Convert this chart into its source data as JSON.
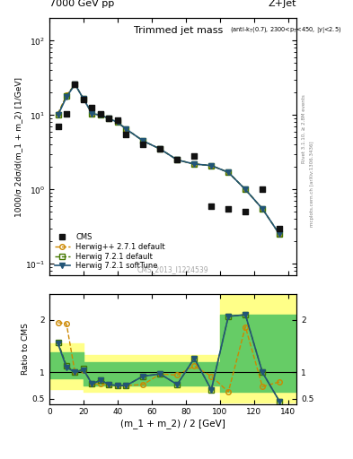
{
  "title_top": "7000 GeV pp",
  "title_right": "Z+Jet",
  "subplot_title": "Trimmed jet mass",
  "subplot_subtitle_small": "(anti-k_{T}(0.7), 2300<p_{T}<450, |y|<2.5)",
  "ylabel_main": "1000/σ 2dσ/d(m_1 + m_2) [1/GeV]",
  "ylabel_ratio": "Ratio to CMS",
  "xlabel": "(m_1 + m_2) / 2 [GeV]",
  "watermark": "CMS_2013_I1224539",
  "rivet_label": "Rivet 3.1.10, ≥ 2.8M events",
  "mcplots_label": "mcplots.cern.ch [arXiv:1306.3436]",
  "cms_x": [
    5,
    10,
    15,
    20,
    25,
    30,
    35,
    40,
    45,
    55,
    65,
    75,
    85,
    95,
    105,
    115,
    125,
    135
  ],
  "cms_y": [
    7.0,
    10.5,
    26.0,
    16.0,
    12.5,
    10.5,
    9.0,
    8.5,
    5.5,
    4.0,
    3.5,
    2.5,
    2.8,
    0.6,
    0.55,
    0.5,
    1.0,
    0.3
  ],
  "hpp_x": [
    5,
    10,
    15,
    20,
    25,
    30,
    35,
    40,
    45,
    55,
    65,
    75,
    85,
    95,
    105,
    115,
    125,
    135
  ],
  "hpp_y": [
    10.5,
    18.5,
    26.0,
    16.5,
    10.5,
    10.0,
    9.0,
    8.0,
    6.5,
    4.5,
    3.5,
    2.5,
    2.2,
    2.1,
    1.7,
    1.0,
    0.55,
    0.25
  ],
  "h721d_x": [
    5,
    10,
    15,
    20,
    25,
    30,
    35,
    40,
    45,
    55,
    65,
    75,
    85,
    95,
    105,
    115,
    125,
    135
  ],
  "h721d_y": [
    10.2,
    18.0,
    26.0,
    16.5,
    10.5,
    10.0,
    9.0,
    8.0,
    6.5,
    4.5,
    3.5,
    2.5,
    2.2,
    2.1,
    1.7,
    1.0,
    0.55,
    0.25
  ],
  "h721s_x": [
    5,
    10,
    15,
    20,
    25,
    30,
    35,
    40,
    45,
    55,
    65,
    75,
    85,
    95,
    105,
    115,
    125,
    135
  ],
  "h721s_y": [
    10.0,
    17.5,
    26.0,
    16.5,
    10.5,
    10.0,
    9.0,
    8.0,
    6.5,
    4.5,
    3.5,
    2.5,
    2.2,
    2.1,
    1.7,
    1.0,
    0.55,
    0.25
  ],
  "ratio_hpp_x": [
    5,
    10,
    15,
    20,
    25,
    30,
    35,
    40,
    45,
    55,
    65,
    75,
    85,
    95,
    105,
    115,
    125,
    135
  ],
  "ratio_hpp_y": [
    1.95,
    1.93,
    1.0,
    1.05,
    0.78,
    0.78,
    0.77,
    0.75,
    0.75,
    0.77,
    0.97,
    0.95,
    1.12,
    0.93,
    0.63,
    1.87,
    0.73,
    0.82
  ],
  "ratio_h721d_x": [
    5,
    10,
    15,
    20,
    25,
    30,
    35,
    40,
    45,
    55,
    65,
    75,
    85,
    95,
    105,
    115,
    125,
    135
  ],
  "ratio_h721d_y": [
    1.58,
    1.13,
    1.0,
    1.07,
    0.78,
    0.86,
    0.77,
    0.75,
    0.75,
    0.93,
    0.97,
    0.77,
    1.27,
    0.67,
    2.07,
    2.1,
    1.0,
    0.45
  ],
  "ratio_h721s_x": [
    5,
    10,
    15,
    20,
    25,
    30,
    35,
    40,
    45,
    55,
    65,
    75,
    85,
    95,
    105,
    115,
    125,
    135
  ],
  "ratio_h721s_y": [
    1.55,
    1.1,
    1.0,
    1.05,
    0.78,
    0.85,
    0.77,
    0.75,
    0.75,
    0.93,
    0.97,
    0.77,
    1.27,
    0.67,
    2.07,
    2.1,
    1.0,
    0.45
  ],
  "yellow_band_x": [
    0,
    10,
    20,
    30,
    40,
    50,
    60,
    70,
    80,
    90,
    100,
    110,
    145
  ],
  "yellow_band_lo": [
    0.68,
    0.68,
    0.63,
    0.63,
    0.63,
    0.63,
    0.63,
    0.63,
    0.63,
    0.63,
    0.43,
    0.43,
    0.43
  ],
  "yellow_band_hi": [
    1.55,
    1.55,
    1.33,
    1.33,
    1.33,
    1.33,
    1.33,
    1.33,
    1.33,
    1.33,
    2.5,
    2.5,
    2.5
  ],
  "green_band_x": [
    0,
    10,
    20,
    30,
    40,
    50,
    60,
    70,
    80,
    90,
    100,
    110,
    145
  ],
  "green_band_lo": [
    0.88,
    0.88,
    0.75,
    0.75,
    0.75,
    0.75,
    0.75,
    0.75,
    0.75,
    0.75,
    0.63,
    0.63,
    0.63
  ],
  "green_band_hi": [
    1.38,
    1.38,
    1.2,
    1.2,
    1.2,
    1.2,
    1.2,
    1.2,
    1.2,
    1.2,
    2.1,
    2.1,
    2.1
  ],
  "xlim": [
    0,
    145
  ],
  "ylim_main": [
    0.07,
    200
  ],
  "ylim_ratio": [
    0.4,
    2.5
  ],
  "color_hpp": "#CC8800",
  "color_h721d": "#447700",
  "color_h721s": "#225577",
  "color_cms": "#111111",
  "color_yellow": "#FFFF88",
  "color_green": "#66CC66"
}
